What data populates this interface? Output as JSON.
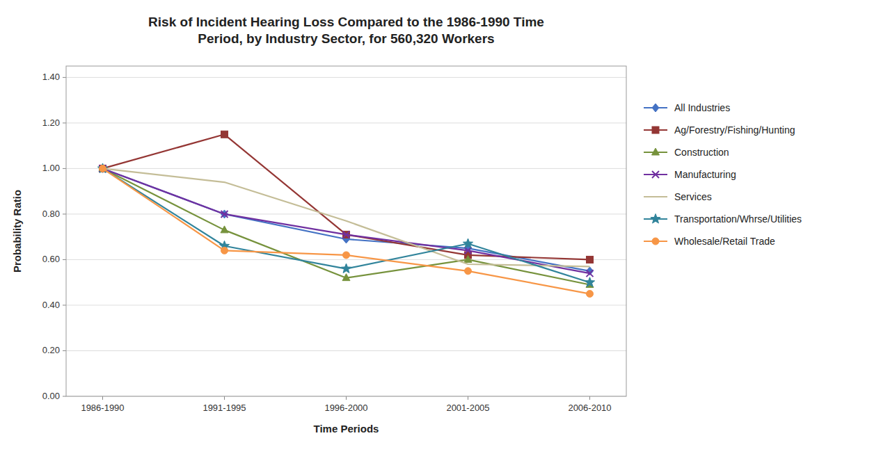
{
  "chart_data": {
    "type": "line",
    "title": "Risk of Incident Hearing Loss Compared to the 1986-1990 Time\nPeriod, by Industry Sector, for 560,320 Workers",
    "x_label": "Time Periods",
    "y_label": "Probability Ratio",
    "categories": [
      "1986-1990",
      "1991-1995",
      "1996-2000",
      "2001-2005",
      "2006-2010"
    ],
    "ylim": [
      0.0,
      1.45
    ],
    "yticks": [
      {
        "value": 0.0,
        "label": "0.00"
      },
      {
        "value": 0.2,
        "label": "0.20"
      },
      {
        "value": 0.4,
        "label": "0.40"
      },
      {
        "value": 0.6,
        "label": "0.60"
      },
      {
        "value": 0.8,
        "label": "0.80"
      },
      {
        "value": 1.0,
        "label": "1.00"
      },
      {
        "value": 1.2,
        "label": "1.20"
      },
      {
        "value": 1.4,
        "label": "1.40"
      }
    ],
    "grid": true,
    "legend": "right",
    "series": [
      {
        "name": "All Industries",
        "color": "#4472C4",
        "marker": "diamond",
        "values": [
          1.0,
          0.8,
          0.69,
          0.65,
          0.55
        ]
      },
      {
        "name": "Ag/Forestry/Fishing/Hunting",
        "color": "#943634",
        "marker": "square",
        "values": [
          1.0,
          1.15,
          0.71,
          0.62,
          0.6
        ]
      },
      {
        "name": "Construction",
        "color": "#76923C",
        "marker": "triangle",
        "values": [
          1.0,
          0.73,
          0.52,
          0.6,
          0.49
        ]
      },
      {
        "name": "Manufacturing",
        "color": "#7030A0",
        "marker": "x",
        "values": [
          1.0,
          0.8,
          0.71,
          0.64,
          0.54
        ]
      },
      {
        "name": "Services",
        "color": "#C4BD97",
        "marker": "none",
        "values": [
          1.0,
          0.94,
          0.77,
          0.58,
          0.57
        ]
      },
      {
        "name": "Transportation/Whrse/Utilities",
        "color": "#31849B",
        "marker": "star",
        "values": [
          1.0,
          0.66,
          0.56,
          0.67,
          0.5
        ]
      },
      {
        "name": "Wholesale/Retail Trade",
        "color": "#F79646",
        "marker": "circle",
        "values": [
          1.0,
          0.64,
          0.62,
          0.55,
          0.45
        ]
      }
    ]
  }
}
